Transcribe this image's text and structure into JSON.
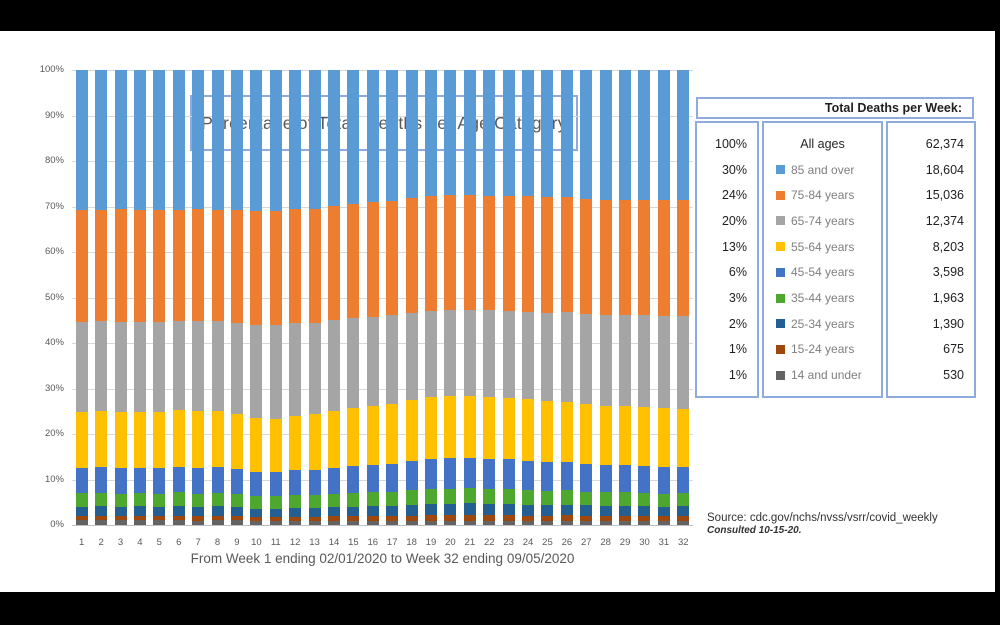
{
  "title": "Percentage of Total  Deaths per Age Category",
  "caption": "From Week 1 ending 02/01/2020 to Week 32 ending 09/05/2020",
  "source": {
    "line1": "Source: cdc.gov/nchs/nvss/vsrr/covid_weekly",
    "line2": "Consulted 10-15-20."
  },
  "colors": {
    "panel_border": "#8FAADC",
    "grid": "#D9D9D9",
    "axis_text": "#595959",
    "legend_label_gray": "#7F7F7F"
  },
  "legend_panel": {
    "header": "Total Deaths per Week:",
    "rows": [
      {
        "percent": "100%",
        "label": "All ages",
        "total": "62,374",
        "color": null
      },
      {
        "percent": "30%",
        "label": "85 and over",
        "total": "18,604",
        "color": "#5B9BD5"
      },
      {
        "percent": "24%",
        "label": "75-84 years",
        "total": "15,036",
        "color": "#ED7D31"
      },
      {
        "percent": "20%",
        "label": "65-74 years",
        "total": "12,374",
        "color": "#A5A5A5"
      },
      {
        "percent": "13%",
        "label": "55-64 years",
        "total": "8,203",
        "color": "#FFC000"
      },
      {
        "percent": "6%",
        "label": "45-54 years",
        "total": "3,598",
        "color": "#4472C4"
      },
      {
        "percent": "3%",
        "label": "35-44 years",
        "total": "1,963",
        "color": "#4EA72E"
      },
      {
        "percent": "2%",
        "label": "25-34 years",
        "total": "1,390",
        "color": "#255E91"
      },
      {
        "percent": "1%",
        "label": "15-24 years",
        "total": "675",
        "color": "#9E480E"
      },
      {
        "percent": "1%",
        "label": "14 and under",
        "total": "530",
        "color": "#636363"
      }
    ]
  },
  "chart_data": {
    "type": "bar",
    "variant": "100-percent-stacked-column",
    "title": "Percentage of Total  Deaths per Age Category",
    "x_caption": "From Week 1 ending 02/01/2020 to Week 32 ending 09/05/2020",
    "categories": [
      1,
      2,
      3,
      4,
      5,
      6,
      7,
      8,
      9,
      10,
      11,
      12,
      13,
      14,
      15,
      16,
      17,
      18,
      19,
      20,
      21,
      22,
      23,
      24,
      25,
      26,
      27,
      28,
      29,
      30,
      31,
      32
    ],
    "ylim": [
      0,
      100
    ],
    "ytick_values": [
      0,
      10,
      20,
      30,
      40,
      50,
      60,
      70,
      80,
      90,
      100
    ],
    "ytick_labels": [
      "0%",
      "10%",
      "20%",
      "30%",
      "40%",
      "50%",
      "60%",
      "70%",
      "80%",
      "90%",
      "100%"
    ],
    "grid": "horizontal gridlines every 10%",
    "legend_position": "separate right panel with weekly totals",
    "stack_order": "bottom_to_top",
    "series": [
      {
        "name": "14 and under",
        "color": "#636363",
        "values": [
          1.0,
          1.0,
          1.0,
          1.0,
          1.0,
          1.0,
          0.9,
          1.0,
          1.0,
          0.9,
          0.9,
          0.9,
          0.9,
          0.9,
          0.9,
          0.8,
          0.8,
          0.8,
          0.8,
          0.8,
          0.8,
          0.8,
          0.8,
          0.8,
          0.8,
          0.9,
          0.9,
          0.9,
          0.9,
          0.9,
          0.9,
          0.9
        ]
      },
      {
        "name": "15-24 years",
        "color": "#9E480E",
        "values": [
          1.0,
          1.0,
          1.0,
          1.0,
          0.9,
          1.0,
          1.0,
          1.0,
          0.9,
          0.9,
          0.9,
          0.9,
          0.9,
          1.0,
          1.0,
          1.1,
          1.1,
          1.2,
          1.3,
          1.3,
          1.3,
          1.3,
          1.3,
          1.2,
          1.2,
          1.2,
          1.1,
          1.1,
          1.1,
          1.1,
          1.0,
          1.1
        ]
      },
      {
        "name": "25-34 years",
        "color": "#255E91",
        "values": [
          2.0,
          2.1,
          2.0,
          2.1,
          2.0,
          2.1,
          2.0,
          2.1,
          2.0,
          1.8,
          1.8,
          1.9,
          1.9,
          2.0,
          2.1,
          2.2,
          2.3,
          2.4,
          2.6,
          2.6,
          2.7,
          2.6,
          2.6,
          2.5,
          2.4,
          2.4,
          2.3,
          2.2,
          2.2,
          2.2,
          2.1,
          2.1
        ]
      },
      {
        "name": "35-44 years",
        "color": "#4EA72E",
        "values": [
          3.0,
          3.0,
          2.9,
          3.0,
          3.0,
          3.1,
          3.0,
          3.0,
          2.9,
          2.8,
          2.8,
          2.9,
          2.9,
          3.0,
          3.0,
          3.1,
          3.1,
          3.2,
          3.2,
          3.3,
          3.3,
          3.2,
          3.2,
          3.2,
          3.1,
          3.1,
          3.0,
          3.0,
          3.0,
          2.9,
          2.9,
          2.9
        ]
      },
      {
        "name": "45-54 years",
        "color": "#4472C4",
        "values": [
          5.5,
          5.6,
          5.6,
          5.5,
          5.6,
          5.6,
          5.7,
          5.6,
          5.5,
          5.3,
          5.3,
          5.4,
          5.5,
          5.7,
          5.9,
          6.0,
          6.2,
          6.4,
          6.6,
          6.7,
          6.6,
          6.6,
          6.5,
          6.4,
          6.3,
          6.2,
          6.1,
          6.0,
          6.0,
          5.9,
          5.9,
          5.8
        ]
      },
      {
        "name": "55-64 years",
        "color": "#FFC000",
        "values": [
          12.3,
          12.4,
          12.4,
          12.2,
          12.4,
          12.5,
          12.5,
          12.4,
          12.2,
          11.8,
          11.7,
          12.0,
          12.2,
          12.5,
          12.8,
          13.0,
          13.2,
          13.4,
          13.6,
          13.7,
          13.6,
          13.7,
          13.6,
          13.5,
          13.4,
          13.3,
          13.1,
          13.0,
          12.9,
          13.0,
          12.9,
          12.8
        ]
      },
      {
        "name": "65-74 years",
        "color": "#A5A5A5",
        "values": [
          19.9,
          19.7,
          19.8,
          19.8,
          19.7,
          19.6,
          19.8,
          19.7,
          19.9,
          20.5,
          20.5,
          20.3,
          20.2,
          20.0,
          19.8,
          19.6,
          19.4,
          19.2,
          18.9,
          18.9,
          18.9,
          19.0,
          19.1,
          19.3,
          19.5,
          19.7,
          19.9,
          20.0,
          20.1,
          20.1,
          20.2,
          20.3
        ]
      },
      {
        "name": "75-84 years",
        "color": "#ED7D31",
        "values": [
          24.6,
          24.5,
          24.7,
          24.6,
          24.6,
          24.4,
          24.5,
          24.5,
          24.8,
          25.0,
          25.1,
          25.2,
          25.0,
          25.0,
          25.1,
          25.2,
          25.2,
          25.3,
          25.3,
          25.2,
          25.3,
          25.2,
          25.2,
          25.3,
          25.3,
          25.2,
          25.3,
          25.3,
          25.3,
          25.4,
          25.5,
          25.5
        ]
      },
      {
        "name": "85 and over",
        "color": "#5B9BD5",
        "values": [
          30.7,
          30.7,
          30.6,
          30.8,
          30.8,
          30.7,
          30.6,
          30.7,
          30.8,
          31.0,
          31.0,
          30.5,
          30.5,
          29.9,
          29.4,
          29.0,
          28.7,
          28.1,
          27.7,
          27.5,
          27.5,
          27.6,
          27.7,
          27.8,
          28.0,
          28.0,
          28.3,
          28.5,
          28.5,
          28.5,
          28.6,
          28.6
        ]
      }
    ]
  }
}
